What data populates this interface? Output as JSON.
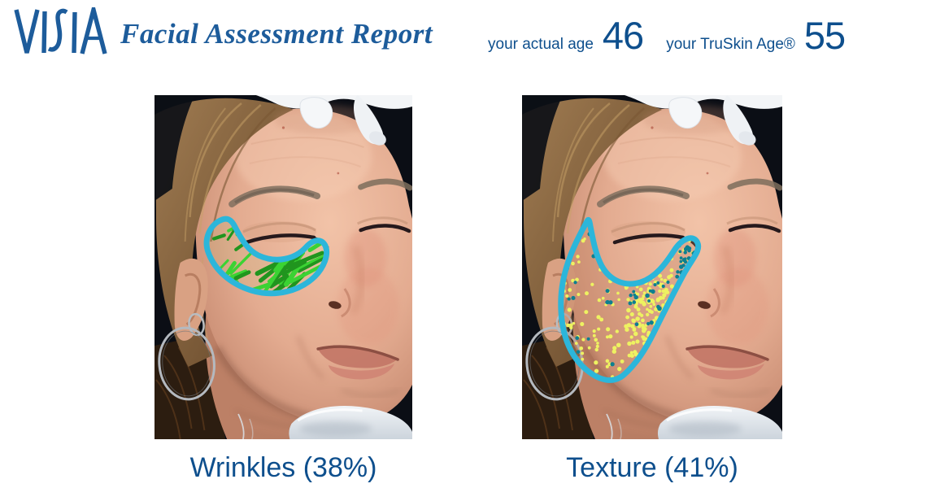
{
  "header": {
    "logo_text": "VISIA",
    "report_title": "Facial Assessment Report",
    "actual_age_label": "your actual age",
    "actual_age_value": "46",
    "truskin_age_label": "your TruSkin Age®",
    "truskin_age_value": "55"
  },
  "panels": [
    {
      "metric": "Wrinkles",
      "score_percent": 38,
      "caption": "Wrinkles (38%)"
    },
    {
      "metric": "Texture",
      "score_percent": 41,
      "caption": "Texture (41%)"
    }
  ],
  "colors": {
    "brand_blue": "#0e4f8d",
    "logo_blue": "#1d5c9b",
    "overlay_outline_cyan": "#2cb6da",
    "wrinkle_green_bright": "#35d22e",
    "wrinkle_green_dark": "#178f17",
    "texture_dot_yellow": "#eef261",
    "texture_dot_teal": "#0d7f90"
  }
}
